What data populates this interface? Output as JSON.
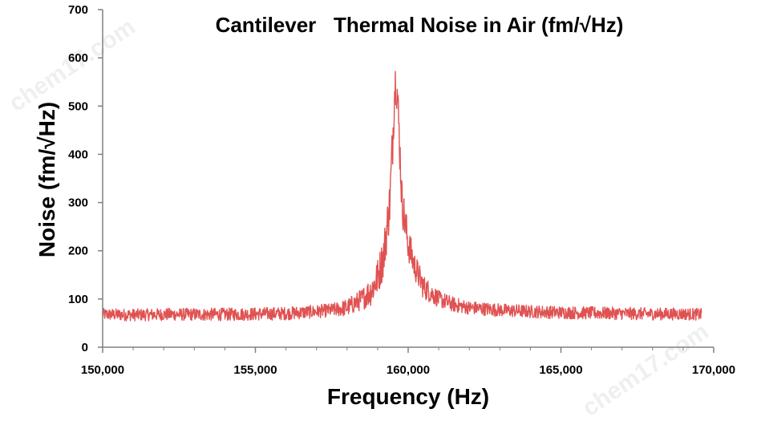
{
  "watermark": "chem17.com",
  "chart_data": {
    "type": "line",
    "title": "Cantilever   Thermal Noise in Air (fm/√Hz)",
    "xlabel": "Frequency (Hz)",
    "ylabel": "Noise (fm/√Hz)",
    "xlim": [
      150000,
      170000
    ],
    "ylim": [
      0,
      700
    ],
    "x_ticks": [
      150000,
      155000,
      160000,
      165000,
      170000
    ],
    "x_tick_labels": [
      "150,000",
      "155,000",
      "160,000",
      "165,000",
      "170,000"
    ],
    "y_ticks": [
      0,
      100,
      200,
      300,
      400,
      500,
      600,
      700
    ],
    "y_tick_labels": [
      "0",
      "100",
      "200",
      "300",
      "400",
      "500",
      "600",
      "700"
    ],
    "grid": false,
    "legend": "none",
    "line_color": "#e05252",
    "series": [
      {
        "x": [
          150000,
          151000,
          152000,
          153000,
          154000,
          155000,
          156000,
          157000,
          157500,
          158000,
          158500,
          158800,
          159000,
          159200,
          159400,
          159500,
          159550,
          159600,
          159650,
          159700,
          159800,
          160000,
          160200,
          160500,
          161000,
          161500,
          162000,
          163000,
          164000,
          165000,
          166000,
          167000,
          168000,
          169000,
          169600
        ],
        "y": [
          68,
          67,
          68,
          68,
          68,
          69,
          70,
          74,
          77,
          82,
          100,
          118,
          145,
          190,
          300,
          440,
          530,
          560,
          520,
          450,
          300,
          215,
          170,
          125,
          100,
          88,
          82,
          77,
          74,
          72,
          71,
          70,
          69,
          69,
          68
        ],
        "noise_band": [
          [
            150000,
            25
          ],
          [
            157500,
            28
          ],
          [
            158500,
            45
          ],
          [
            159200,
            90
          ],
          [
            159500,
            110
          ],
          [
            159800,
            90
          ],
          [
            160200,
            60
          ],
          [
            161000,
            35
          ],
          [
            162000,
            28
          ],
          [
            169600,
            25
          ]
        ]
      }
    ]
  }
}
